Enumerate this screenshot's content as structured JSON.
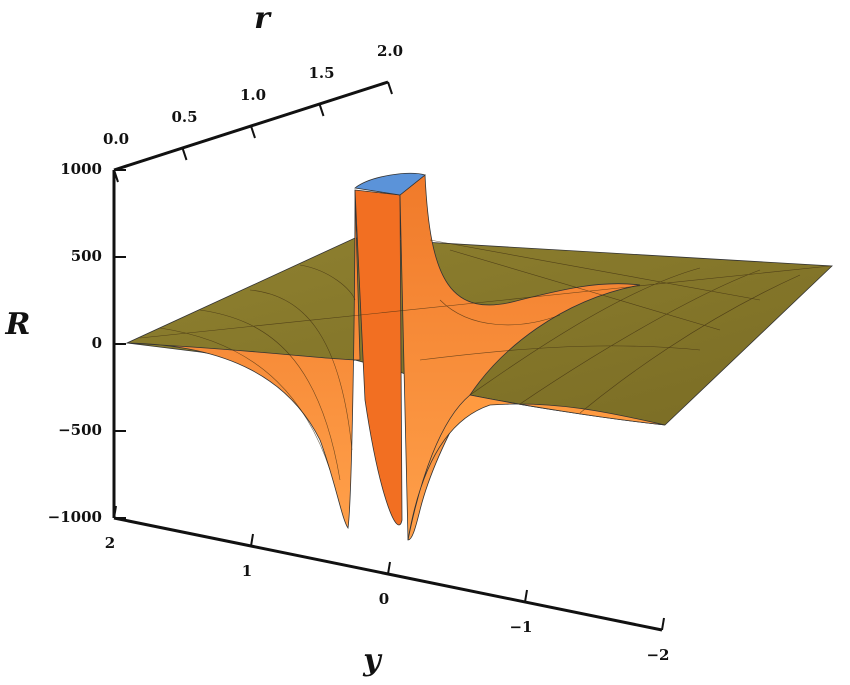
{
  "chart_data": {
    "type": "surface3d",
    "x_label": "r",
    "y_label": "y",
    "z_label": "R",
    "xlim": [
      0,
      2
    ],
    "xticks": [
      {
        "value": 0,
        "label": "0.0"
      },
      {
        "value": 0.5,
        "label": "0.5"
      },
      {
        "value": 1,
        "label": "1.0"
      },
      {
        "value": 1.5,
        "label": "1.5"
      },
      {
        "value": 2,
        "label": "2.0"
      }
    ],
    "ylim": [
      2,
      -2
    ],
    "yticks": [
      2,
      1,
      0,
      {
        "value": -1,
        "label": "−1"
      },
      {
        "value": -2,
        "label": "−2"
      }
    ],
    "zlim": [
      -1000,
      1000
    ],
    "zticks": [
      1000,
      500,
      0,
      {
        "value": -500,
        "label": "−500"
      },
      {
        "value": -1000,
        "label": "−1000"
      }
    ]
  }
}
